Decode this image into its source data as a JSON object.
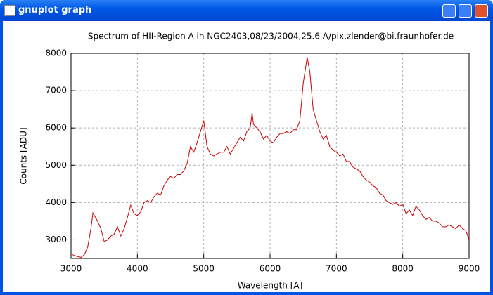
{
  "window": {
    "title": "gnuplot graph"
  },
  "chart_data": {
    "type": "line",
    "title": "Spectrum of HII-Region A in NGC2403,08/23/2004,25.6 A/pix,zlender@bi.fraunhofer.de",
    "x_label": "Wavelength [A]",
    "y_label": "Counts [ADU]",
    "x": [
      3000,
      3050,
      3100,
      3150,
      3200,
      3250,
      3300,
      3330,
      3400,
      3450,
      3500,
      3550,
      3600,
      3650,
      3700,
      3750,
      3800,
      3850,
      3900,
      3950,
      4000,
      4050,
      4100,
      4150,
      4200,
      4250,
      4300,
      4350,
      4400,
      4450,
      4500,
      4550,
      4600,
      4650,
      4700,
      4750,
      4800,
      4850,
      4900,
      4950,
      5000,
      5050,
      5100,
      5150,
      5200,
      5250,
      5300,
      5350,
      5400,
      5450,
      5500,
      5550,
      5600,
      5650,
      5700,
      5730,
      5750,
      5800,
      5850,
      5900,
      5950,
      6000,
      6050,
      6100,
      6150,
      6200,
      6250,
      6300,
      6350,
      6400,
      6450,
      6500,
      6560,
      6600,
      6650,
      6700,
      6750,
      6800,
      6850,
      6900,
      6950,
      7000,
      7050,
      7100,
      7150,
      7200,
      7250,
      7300,
      7350,
      7400,
      7450,
      7500,
      7550,
      7600,
      7650,
      7700,
      7750,
      7800,
      7850,
      7900,
      7950,
      8000,
      8050,
      8100,
      8150,
      8200,
      8250,
      8300,
      8350,
      8400,
      8450,
      8500,
      8550,
      8600,
      8650,
      8700,
      8750,
      8800,
      8850,
      8900,
      8950,
      9000
    ],
    "values": [
      2620,
      2580,
      2550,
      2530,
      2600,
      2800,
      3300,
      3720,
      3500,
      3300,
      2950,
      3000,
      3100,
      3150,
      3350,
      3100,
      3300,
      3600,
      3930,
      3700,
      3650,
      3750,
      4000,
      4050,
      4000,
      4150,
      4250,
      4200,
      4450,
      4600,
      4700,
      4650,
      4750,
      4750,
      4850,
      5050,
      5500,
      5350,
      5600,
      5900,
      6200,
      5500,
      5300,
      5250,
      5300,
      5350,
      5350,
      5500,
      5300,
      5450,
      5600,
      5750,
      5650,
      5900,
      6000,
      6400,
      6100,
      6000,
      5900,
      5700,
      5800,
      5650,
      5600,
      5750,
      5850,
      5850,
      5900,
      5850,
      5950,
      5950,
      6200,
      7200,
      7900,
      7500,
      6500,
      6200,
      5900,
      5700,
      5800,
      5500,
      5400,
      5350,
      5250,
      5300,
      5100,
      5100,
      4950,
      4900,
      4850,
      4700,
      4600,
      4550,
      4450,
      4400,
      4250,
      4200,
      4050,
      4000,
      3950,
      4000,
      3900,
      3950,
      3700,
      3800,
      3650,
      3900,
      3800,
      3650,
      3550,
      3600,
      3500,
      3500,
      3450,
      3350,
      3350,
      3400,
      3350,
      3300,
      3400,
      3300,
      3250,
      3000
    ],
    "color": "#cc0000",
    "xlim": [
      3000,
      9000
    ],
    "xticks": [
      3000,
      4000,
      5000,
      6000,
      7000,
      8000,
      9000
    ],
    "ylim": [
      2500,
      8000
    ],
    "yticks": [
      3000,
      4000,
      5000,
      6000,
      7000,
      8000
    ],
    "grid": true
  }
}
